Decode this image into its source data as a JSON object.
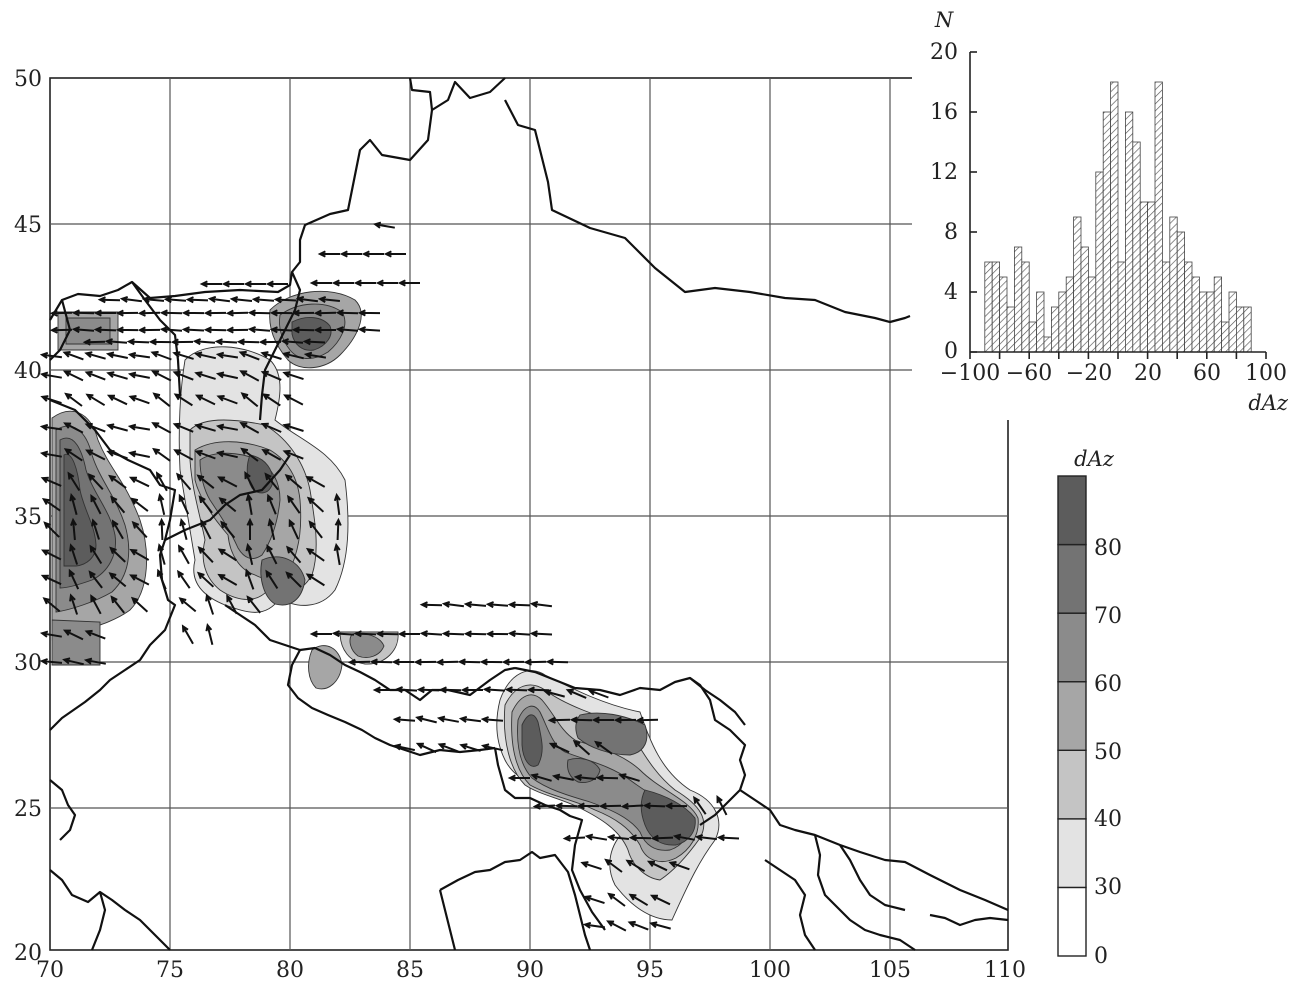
{
  "map": {
    "x_ticks": [
      "70",
      "75",
      "80",
      "85",
      "90",
      "95",
      "100",
      "105",
      "110"
    ],
    "y_ticks": [
      "20",
      "25",
      "30",
      "35",
      "40",
      "45",
      "50"
    ],
    "lon_range": [
      70,
      110
    ],
    "lat_range": [
      20,
      50
    ],
    "grid": true
  },
  "histogram": {
    "ylabel": "N",
    "xlabel": "dAz",
    "x_ticks": [
      "−100",
      "−60",
      "−20",
      "20",
      "60",
      "100"
    ],
    "y_ticks": [
      "0",
      "4",
      "8",
      "12",
      "16",
      "20"
    ]
  },
  "legend": {
    "title": "dAz",
    "levels": [
      "0",
      "30",
      "40",
      "50",
      "60",
      "70",
      "80"
    ],
    "colors": [
      "#ffffff",
      "#e3e3e3",
      "#c4c4c4",
      "#a6a6a6",
      "#8b8b8b",
      "#737373",
      "#5c5c5c"
    ]
  },
  "chart_data": {
    "type": "bar",
    "xlabel": "dAz",
    "ylabel": "N",
    "xlim": [
      -100,
      100
    ],
    "ylim": [
      0,
      20
    ],
    "bin_width": 5,
    "bin_starts": [
      -90,
      -85,
      -80,
      -75,
      -70,
      -65,
      -60,
      -55,
      -50,
      -45,
      -40,
      -35,
      -30,
      -25,
      -20,
      -15,
      -10,
      -5,
      0,
      5,
      10,
      15,
      20,
      25,
      30,
      35,
      40,
      45,
      50,
      55,
      60,
      65,
      70,
      75,
      80,
      85
    ],
    "values": [
      6,
      6,
      5,
      3,
      7,
      6,
      2,
      4,
      1,
      3,
      4,
      5,
      9,
      7,
      5,
      12,
      16,
      18,
      6,
      16,
      14,
      10,
      10,
      18,
      6,
      9,
      8,
      6,
      5,
      4,
      4,
      5,
      2,
      4,
      3,
      3
    ]
  }
}
